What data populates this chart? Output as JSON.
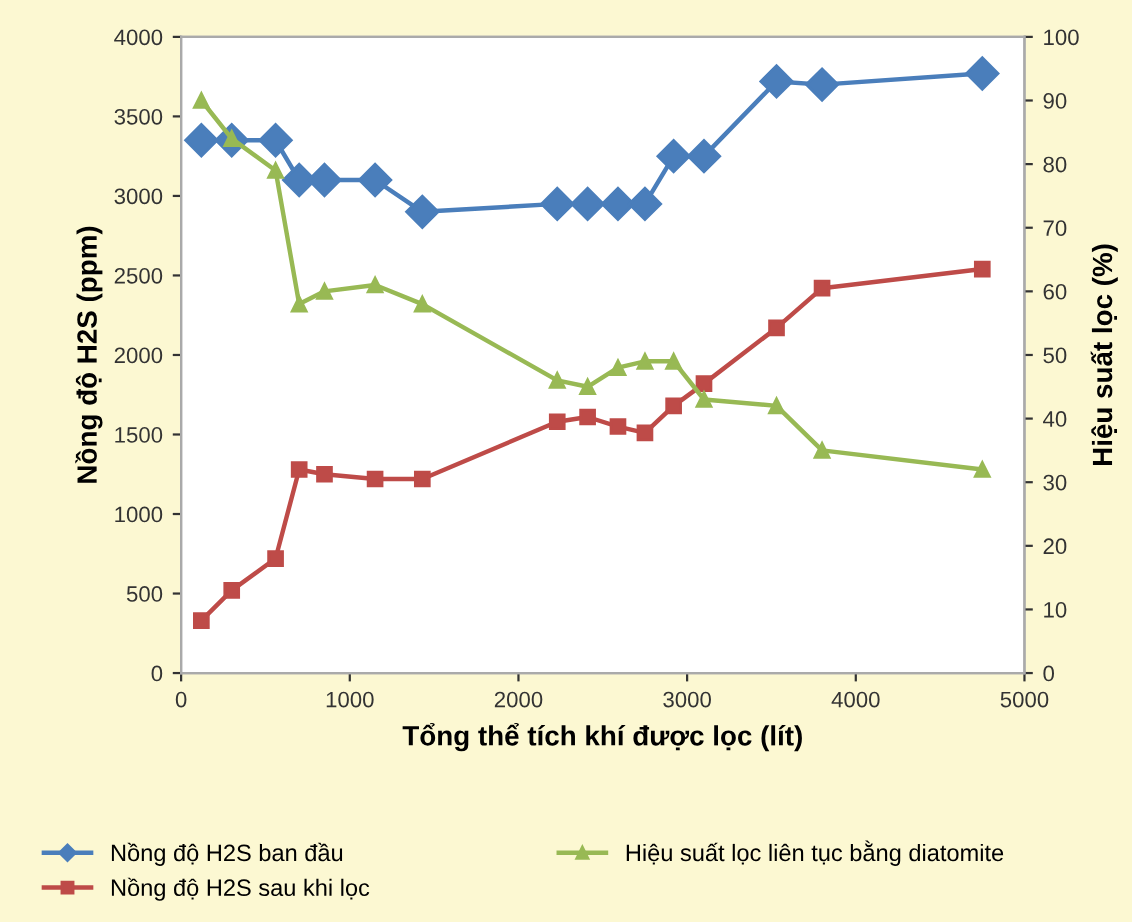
{
  "chart_data": {
    "type": "line",
    "xlabel": "Tổng thể tích khí được lọc (lít)",
    "ylabel": "Nồng độ H2S (ppm)",
    "y2label": "Hiệu suất lọc (%)",
    "x": [
      120,
      300,
      560,
      700,
      850,
      1150,
      1430,
      2230,
      2410,
      2590,
      2750,
      2920,
      3100,
      3530,
      3800,
      4750
    ],
    "series": [
      {
        "name": "Nồng độ H2S ban đầu",
        "color": "#4a7ebb",
        "marker": "diamond",
        "values": [
          3350,
          3350,
          3350,
          3100,
          3100,
          3100,
          2900,
          2950,
          2950,
          2950,
          2950,
          3250,
          3250,
          3720,
          3700,
          3770
        ]
      },
      {
        "name": "Nồng độ H2S sau khi lọc",
        "color": "#be4b48",
        "marker": "square",
        "values": [
          330,
          520,
          720,
          1280,
          1250,
          1220,
          1220,
          1580,
          1610,
          1550,
          1510,
          1680,
          1820,
          2170,
          2420,
          2540
        ]
      },
      {
        "name": "Hiệu suất lọc liên tục bằng diatomite",
        "color": "#98b954",
        "marker": "triangle",
        "axis": "y2",
        "values": [
          90,
          84,
          79,
          58,
          60,
          61,
          58,
          46,
          45,
          48,
          49,
          49,
          43,
          42,
          35,
          32
        ]
      }
    ],
    "xlim": [
      0,
      5000
    ],
    "xticks": [
      0,
      1000,
      2000,
      3000,
      4000,
      5000
    ],
    "ylim": [
      0,
      4000
    ],
    "yticks": [
      0,
      500,
      1000,
      1500,
      2000,
      2500,
      3000,
      3500,
      4000
    ],
    "y2lim": [
      0,
      100
    ],
    "y2ticks": [
      0,
      10,
      20,
      30,
      40,
      50,
      60,
      70,
      80,
      90,
      100
    ],
    "grid": false,
    "legend": "bottom"
  }
}
